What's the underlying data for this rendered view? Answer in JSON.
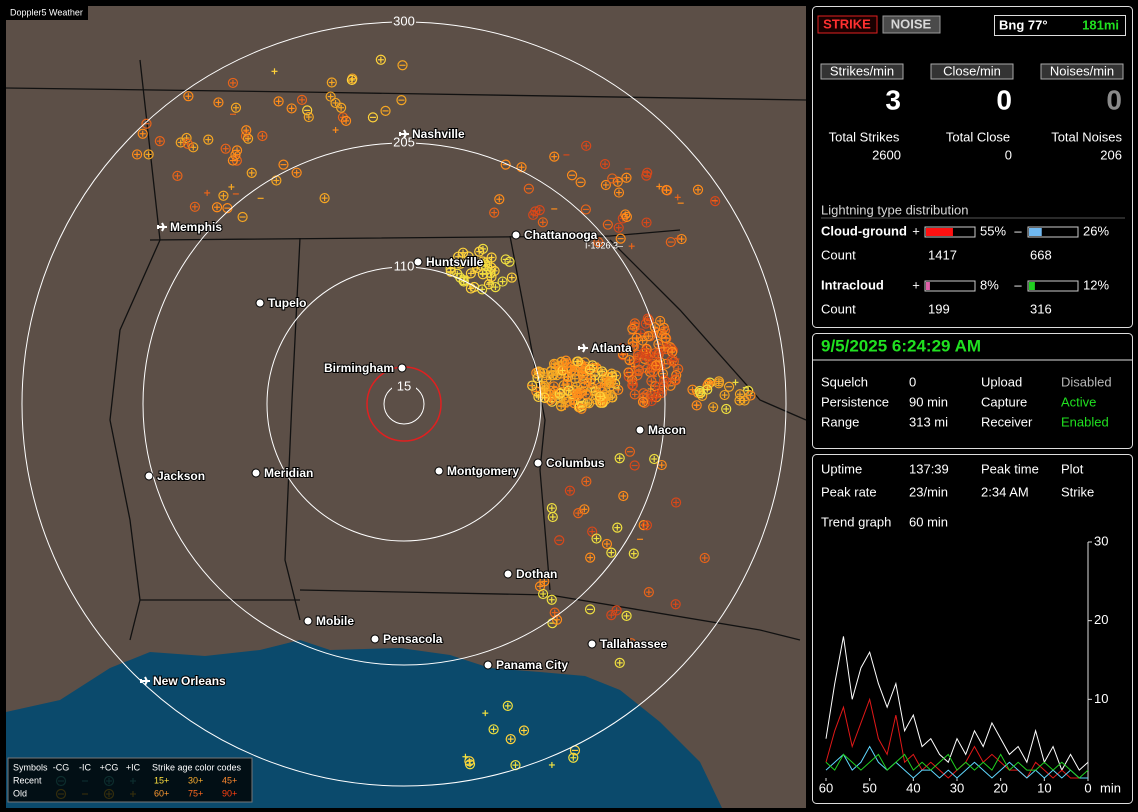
{
  "map": {
    "title": "Doppler5 Weather",
    "range_rings": [
      "300",
      "205",
      "110",
      "15"
    ],
    "cities": [
      "Nashville",
      "Memphis",
      "Chattanooga",
      "Huntsville",
      "Tupelo",
      "Birmingham",
      "Atlanta",
      "Macon",
      "Jackson",
      "Meridian",
      "Montgomery",
      "Columbus",
      "Dothan",
      "Mobile",
      "Pensacola",
      "Tallahassee",
      "Panama City",
      "New Orleans"
    ],
    "road_label": "I-1926 3–",
    "legend": {
      "symbols_label": "Symbols",
      "symbol_types": [
        "-CG",
        "-IC",
        "+CG",
        "+IC"
      ],
      "age_label": "Strike age color codes",
      "rows": [
        {
          "label": "Recent",
          "ages": [
            "15+",
            "30+",
            "45+"
          ]
        },
        {
          "label": "Old",
          "ages": [
            "60+",
            "75+",
            "90+"
          ]
        }
      ]
    }
  },
  "status": {
    "strike_button": "STRIKE",
    "noise_button": "NOISE",
    "bearing": "Bng 77°",
    "distance": "181mi"
  },
  "rates": [
    {
      "label": "Strikes/min",
      "value": 3
    },
    {
      "label": "Close/min",
      "value": 0
    },
    {
      "label": "Noises/min",
      "value": 0
    }
  ],
  "totals": [
    {
      "label": "Total Strikes",
      "value": 2600
    },
    {
      "label": "Total Close",
      "value": 0
    },
    {
      "label": "Total Noises",
      "value": 206
    }
  ],
  "distribution": {
    "title": "Lightning type distribution",
    "count_label": "Count",
    "rows": [
      {
        "label": "Cloud-ground",
        "positive_sign": "+",
        "positive": {
          "value": 55,
          "label": "55%"
        },
        "positive_color": "#ff1010",
        "negative_sign": "–",
        "negative": {
          "value": 26,
          "label": "26%"
        },
        "negative_color": "#70b8f0",
        "positive_count": 1417,
        "negative_count": 668
      },
      {
        "label": "Intracloud",
        "positive_sign": "+",
        "positive": {
          "value": 8,
          "label": "8%"
        },
        "positive_color": "#e060a8",
        "negative_sign": "–",
        "negative": {
          "value": 12,
          "label": "12%"
        },
        "negative_color": "#20d020",
        "positive_count": 199,
        "negative_count": 316
      }
    ]
  },
  "datetime": "9/5/2025 6:24:29 AM",
  "settings": [
    [
      "Squelch",
      0,
      "Upload",
      "Disabled"
    ],
    [
      "Persistence",
      "90 min",
      "Capture",
      "Active"
    ],
    [
      "Range",
      "313 mi",
      "Receiver",
      "Enabled"
    ]
  ],
  "stats": [
    [
      "Uptime",
      "137:39",
      "Peak time",
      "Plot"
    ],
    [
      "Peak rate",
      "23/min",
      "2:34 AM",
      "Strike"
    ],
    [
      "Trend graph",
      "60 min"
    ]
  ],
  "chart_data": {
    "type": "line",
    "x": [
      60,
      58,
      56,
      54,
      52,
      50,
      48,
      46,
      44,
      42,
      40,
      38,
      36,
      34,
      32,
      30,
      28,
      26,
      24,
      22,
      20,
      18,
      16,
      14,
      12,
      10,
      8,
      6,
      4,
      2,
      0
    ],
    "xlim": [
      60,
      0
    ],
    "ylim": [
      0,
      30
    ],
    "xticks": [
      60,
      50,
      40,
      30,
      20,
      10,
      0
    ],
    "yticks": [
      10,
      20,
      30
    ],
    "x_unit": "min",
    "series": [
      {
        "color": "#ffffff",
        "values": [
          5,
          12,
          18,
          10,
          14,
          16,
          12,
          9,
          12,
          6,
          8,
          4,
          5,
          3,
          2,
          5,
          3,
          6,
          4,
          7,
          5,
          3,
          4,
          2,
          6,
          2,
          4,
          1,
          3,
          1,
          2
        ]
      },
      {
        "color": "#e01818",
        "values": [
          2,
          6,
          9,
          4,
          7,
          10,
          5,
          3,
          8,
          2,
          3,
          1,
          2,
          1,
          0,
          1,
          2,
          4,
          2,
          3,
          2,
          1,
          1,
          0,
          2,
          1,
          0,
          1,
          0,
          0,
          0
        ]
      },
      {
        "color": "#60d8ff",
        "values": [
          1,
          2,
          3,
          1,
          2,
          4,
          2,
          1,
          2,
          1,
          0,
          1,
          1,
          0,
          1,
          0,
          1,
          2,
          1,
          0,
          1,
          2,
          1,
          0,
          1,
          0,
          1,
          0,
          1,
          0,
          0
        ]
      },
      {
        "color": "#20d020",
        "values": [
          2,
          1,
          3,
          2,
          1,
          2,
          3,
          1,
          2,
          3,
          1,
          2,
          1,
          2,
          3,
          1,
          2,
          1,
          2,
          1,
          3,
          1,
          2,
          1,
          1,
          2,
          1,
          2,
          1,
          0,
          1
        ]
      }
    ]
  }
}
